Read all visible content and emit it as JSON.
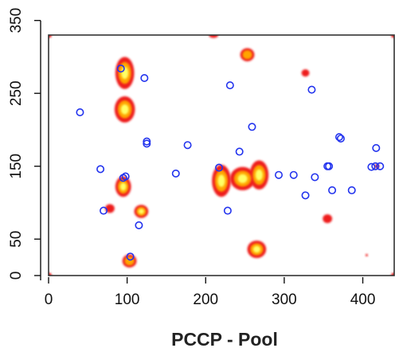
{
  "chart_data": {
    "type": "heatmap",
    "title": "",
    "xlabel": "PCCP - Pool",
    "ylabel": "",
    "xlim": [
      0,
      440
    ],
    "ylim": [
      0,
      330
    ],
    "x_ticks": [
      0,
      100,
      200,
      300,
      400
    ],
    "y_ticks": [
      0,
      50,
      150,
      250,
      350
    ],
    "grid": false,
    "colors": {
      "hot_outer": "#ee1c1c",
      "hot_mid": "#ffa500",
      "hot_core": "#ffff66",
      "marker": "#2233ee"
    },
    "density_blobs": [
      {
        "x": 97,
        "y": 278,
        "rx": 12,
        "ry": 22,
        "level": 3
      },
      {
        "x": 97,
        "y": 228,
        "rx": 13,
        "ry": 18,
        "level": 3
      },
      {
        "x": 95,
        "y": 122,
        "rx": 10,
        "ry": 14,
        "level": 3
      },
      {
        "x": 118,
        "y": 88,
        "rx": 9,
        "ry": 9,
        "level": 3
      },
      {
        "x": 103,
        "y": 20,
        "rx": 9,
        "ry": 9,
        "level": 2
      },
      {
        "x": 78,
        "y": 92,
        "rx": 6,
        "ry": 6,
        "level": 1
      },
      {
        "x": 220,
        "y": 130,
        "rx": 12,
        "ry": 22,
        "level": 3
      },
      {
        "x": 247,
        "y": 133,
        "rx": 16,
        "ry": 16,
        "level": 3
      },
      {
        "x": 268,
        "y": 138,
        "rx": 12,
        "ry": 20,
        "level": 3
      },
      {
        "x": 265,
        "y": 36,
        "rx": 12,
        "ry": 12,
        "level": 3
      },
      {
        "x": 253,
        "y": 303,
        "rx": 9,
        "ry": 9,
        "level": 2
      },
      {
        "x": 210,
        "y": 330,
        "rx": 6,
        "ry": 4,
        "level": 1
      },
      {
        "x": 327,
        "y": 278,
        "rx": 5,
        "ry": 5,
        "level": 1
      },
      {
        "x": 355,
        "y": 78,
        "rx": 6,
        "ry": 6,
        "level": 1
      },
      {
        "x": 418,
        "y": 150,
        "rx": 3,
        "ry": 3,
        "level": 1
      },
      {
        "x": 405,
        "y": 28,
        "rx": 1.5,
        "ry": 1.5,
        "level": 1
      },
      {
        "x": 0,
        "y": 330,
        "rx": 4,
        "ry": 4,
        "level": 1
      },
      {
        "x": 440,
        "y": 330,
        "rx": 4,
        "ry": 4,
        "level": 1
      },
      {
        "x": 0,
        "y": 0,
        "rx": 4,
        "ry": 4,
        "level": 1
      },
      {
        "x": 440,
        "y": 0,
        "rx": 4,
        "ry": 4,
        "level": 1
      }
    ],
    "points": [
      {
        "x": 40,
        "y": 224
      },
      {
        "x": 66,
        "y": 146
      },
      {
        "x": 70,
        "y": 89
      },
      {
        "x": 92,
        "y": 284
      },
      {
        "x": 95,
        "y": 134
      },
      {
        "x": 98,
        "y": 136
      },
      {
        "x": 122,
        "y": 271
      },
      {
        "x": 125,
        "y": 184
      },
      {
        "x": 125,
        "y": 181
      },
      {
        "x": 115,
        "y": 69
      },
      {
        "x": 104,
        "y": 26
      },
      {
        "x": 162,
        "y": 140
      },
      {
        "x": 177,
        "y": 179
      },
      {
        "x": 217,
        "y": 148
      },
      {
        "x": 228,
        "y": 89
      },
      {
        "x": 231,
        "y": 261
      },
      {
        "x": 243,
        "y": 170
      },
      {
        "x": 259,
        "y": 204
      },
      {
        "x": 293,
        "y": 138
      },
      {
        "x": 312,
        "y": 138
      },
      {
        "x": 327,
        "y": 110
      },
      {
        "x": 335,
        "y": 255
      },
      {
        "x": 339,
        "y": 135
      },
      {
        "x": 355,
        "y": 150
      },
      {
        "x": 357,
        "y": 150
      },
      {
        "x": 361,
        "y": 117
      },
      {
        "x": 370,
        "y": 190
      },
      {
        "x": 372,
        "y": 188
      },
      {
        "x": 386,
        "y": 117
      },
      {
        "x": 411,
        "y": 149
      },
      {
        "x": 417,
        "y": 175
      },
      {
        "x": 416,
        "y": 150
      },
      {
        "x": 422,
        "y": 150
      }
    ]
  }
}
